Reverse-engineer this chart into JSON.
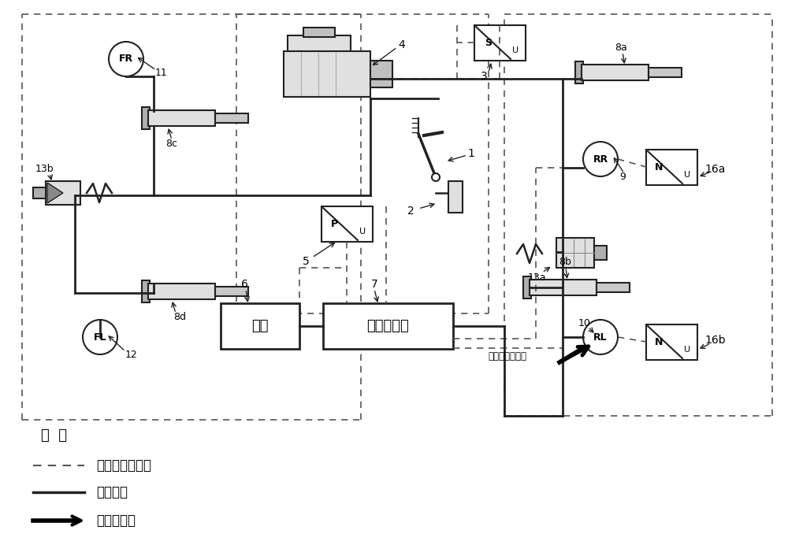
{
  "bg_color": "#ffffff",
  "line_color": "#222222",
  "dashed_color": "#555555",
  "component_fill": "#e0e0e0",
  "component_edge": "#222222",
  "legend_title": "图  例",
  "legend_dashed_label": "信号线和电源线",
  "legend_solid_label": "制动管路",
  "legend_arrow_label": "制动力方向",
  "text_zhi": "至其它电控系统"
}
